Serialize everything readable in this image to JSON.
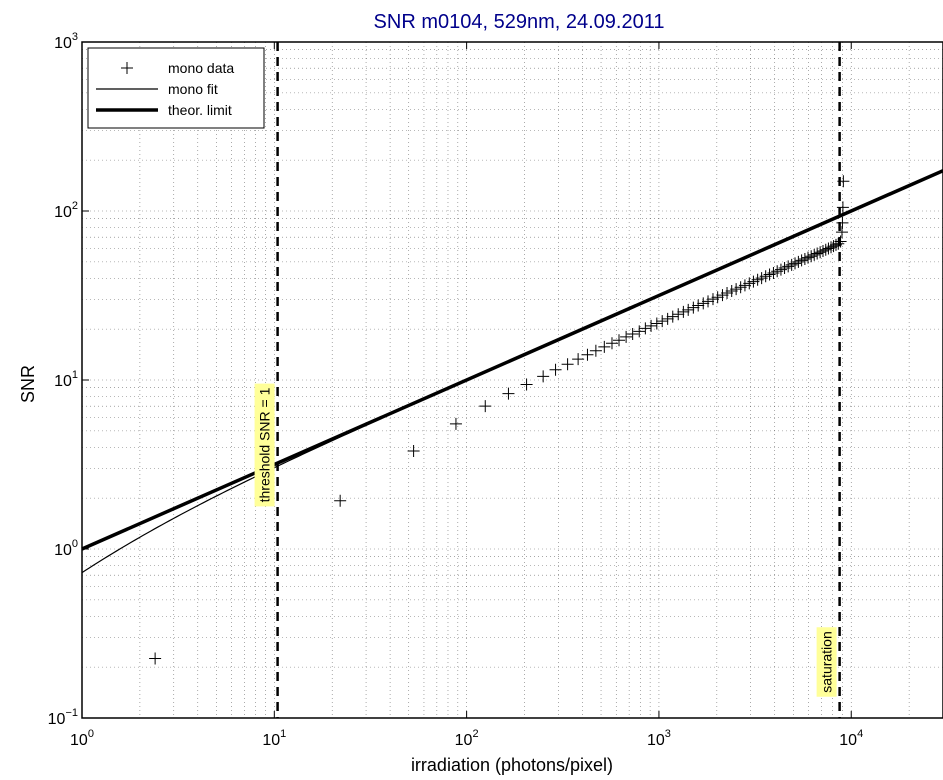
{
  "chart_data": {
    "type": "line",
    "title": "SNR m0104, 529nm, 24.09.2011",
    "xlabel": "irradiation (photons/pixel)",
    "ylabel": "SNR",
    "xscale": "log",
    "yscale": "log",
    "xlim": [
      1,
      30000
    ],
    "ylim": [
      0.1,
      1000
    ],
    "grid": true,
    "legend_position": "top-left",
    "x_ticks": [
      {
        "base": "10",
        "exp": "0",
        "value": 1
      },
      {
        "base": "10",
        "exp": "1",
        "value": 10
      },
      {
        "base": "10",
        "exp": "2",
        "value": 100
      },
      {
        "base": "10",
        "exp": "3",
        "value": 1000
      },
      {
        "base": "10",
        "exp": "4",
        "value": 10000
      }
    ],
    "y_ticks": [
      {
        "base": "10",
        "exp": "−1",
        "value": 0.1
      },
      {
        "base": "10",
        "exp": "0",
        "value": 1
      },
      {
        "base": "10",
        "exp": "1",
        "value": 10
      },
      {
        "base": "10",
        "exp": "2",
        "value": 100
      },
      {
        "base": "10",
        "exp": "3",
        "value": 1000
      }
    ],
    "series": [
      {
        "name": "mono data",
        "style": "markers-plus",
        "x": [
          2.4,
          22,
          53,
          88,
          125,
          165,
          205,
          250,
          290,
          335,
          380,
          425,
          470,
          520,
          570,
          620,
          675,
          730,
          790,
          850,
          910,
          975,
          1040,
          1110,
          1180,
          1260,
          1340,
          1420,
          1510,
          1600,
          1700,
          1800,
          1910,
          2020,
          2140,
          2260,
          2390,
          2520,
          2660,
          2800,
          2950,
          3100,
          3260,
          3420,
          3590,
          3760,
          3940,
          4120,
          4310,
          4500,
          4700,
          4900,
          5100,
          5310,
          5520,
          5740,
          5960,
          6190,
          6420,
          6650,
          6890,
          7130,
          7370,
          7610,
          7850,
          8090,
          8330,
          8560,
          8800,
          8950,
          9000,
          9050,
          9100
        ],
        "y": [
          0.225,
          1.93,
          3.8,
          5.5,
          7.0,
          8.3,
          9.4,
          10.5,
          11.5,
          12.4,
          13.3,
          14.1,
          14.9,
          15.7,
          16.5,
          17.2,
          18.0,
          18.7,
          19.4,
          20.2,
          20.9,
          21.6,
          22.3,
          23.0,
          23.7,
          24.5,
          25.3,
          26.0,
          26.8,
          27.6,
          28.4,
          29.2,
          30.1,
          30.9,
          31.8,
          32.7,
          33.6,
          34.5,
          35.4,
          36.3,
          37.3,
          38.2,
          39.2,
          40.1,
          41.1,
          42.1,
          43.0,
          44.0,
          45.0,
          46.0,
          47.0,
          48.0,
          49.0,
          50.0,
          51.0,
          52.0,
          53.0,
          54.0,
          55.0,
          56.0,
          57.0,
          58.0,
          59.0,
          60.0,
          61.0,
          62.0,
          63.0,
          64.0,
          66.0,
          75.0,
          85.0,
          105.0,
          150.0
        ]
      },
      {
        "name": "mono fit",
        "style": "thin-line",
        "model": {
          "read_noise": 0.95,
          "x_max": 9000
        }
      },
      {
        "name": "theor. limit",
        "style": "thick-line",
        "model": {
          "slope": 0.5,
          "y_at_1": 1.0
        }
      }
    ],
    "annotations": [
      {
        "text": "threshold SNR = 1",
        "x": 10.4,
        "orientation": "vertical"
      },
      {
        "text": "saturation",
        "x": 8700,
        "orientation": "vertical"
      }
    ],
    "colors": {
      "title": "#00008b",
      "lines": "#000000",
      "annotation_box": "#ffff99",
      "grid": "#000000"
    }
  }
}
